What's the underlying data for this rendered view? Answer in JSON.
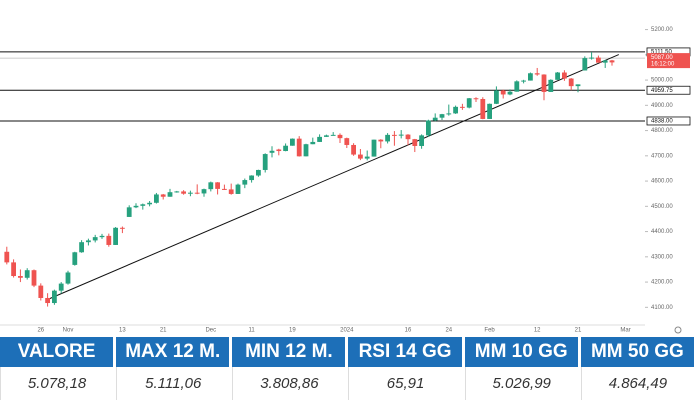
{
  "chart_data": {
    "type": "candlestick",
    "candles": [
      [
        4320,
        4340,
        4270,
        4278
      ],
      [
        4278,
        4290,
        4218,
        4224
      ],
      [
        4224,
        4250,
        4200,
        4217
      ],
      [
        4217,
        4255,
        4210,
        4247
      ],
      [
        4247,
        4250,
        4180,
        4186
      ],
      [
        4186,
        4195,
        4127,
        4137
      ],
      [
        4137,
        4156,
        4103,
        4117
      ],
      [
        4117,
        4170,
        4110,
        4166
      ],
      [
        4166,
        4200,
        4155,
        4194
      ],
      [
        4194,
        4245,
        4190,
        4238
      ],
      [
        4268,
        4320,
        4265,
        4318
      ],
      [
        4318,
        4366,
        4316,
        4358
      ],
      [
        4358,
        4372,
        4345,
        4365
      ],
      [
        4365,
        4387,
        4357,
        4378
      ],
      [
        4378,
        4391,
        4371,
        4383
      ],
      [
        4383,
        4392,
        4340,
        4347
      ],
      [
        4347,
        4418,
        4347,
        4415
      ],
      [
        4415,
        4420,
        4394,
        4411
      ],
      [
        4458,
        4504,
        4458,
        4496
      ],
      [
        4496,
        4512,
        4493,
        4502
      ],
      [
        4502,
        4511,
        4487,
        4508
      ],
      [
        4508,
        4521,
        4500,
        4514
      ],
      [
        4514,
        4553,
        4511,
        4547
      ],
      [
        4547,
        4549,
        4527,
        4538
      ],
      [
        4538,
        4569,
        4538,
        4556
      ],
      [
        4556,
        4561,
        4554,
        4559
      ],
      [
        4559,
        4564,
        4546,
        4550
      ],
      [
        4550,
        4562,
        4540,
        4554
      ],
      [
        4554,
        4587,
        4548,
        4551
      ],
      [
        4551,
        4570,
        4538,
        4568
      ],
      [
        4568,
        4598,
        4559,
        4595
      ],
      [
        4595,
        4596,
        4547,
        4569
      ],
      [
        4569,
        4586,
        4565,
        4567
      ],
      [
        4567,
        4590,
        4546,
        4549
      ],
      [
        4549,
        4590,
        4549,
        4586
      ],
      [
        4586,
        4610,
        4572,
        4604
      ],
      [
        4604,
        4623,
        4594,
        4622
      ],
      [
        4622,
        4645,
        4617,
        4644
      ],
      [
        4644,
        4710,
        4634,
        4707
      ],
      [
        4712,
        4738,
        4694,
        4720
      ],
      [
        4725,
        4728,
        4702,
        4719
      ],
      [
        4719,
        4749,
        4718,
        4740
      ],
      [
        4740,
        4769,
        4740,
        4768
      ],
      [
        4768,
        4778,
        4697,
        4698
      ],
      [
        4698,
        4748,
        4698,
        4746
      ],
      [
        4746,
        4772,
        4746,
        4755
      ],
      [
        4755,
        4785,
        4755,
        4775
      ],
      [
        4775,
        4784,
        4775,
        4781
      ],
      [
        4781,
        4794,
        4780,
        4783
      ],
      [
        4783,
        4789,
        4751,
        4770
      ],
      [
        4770,
        4772,
        4731,
        4743
      ],
      [
        4743,
        4750,
        4700,
        4705
      ],
      [
        4705,
        4727,
        4683,
        4689
      ],
      [
        4689,
        4721,
        4682,
        4697
      ],
      [
        4697,
        4764,
        4697,
        4764
      ],
      [
        4764,
        4766,
        4730,
        4757
      ],
      [
        4757,
        4790,
        4749,
        4783
      ],
      [
        4783,
        4798,
        4740,
        4780
      ],
      [
        4780,
        4802,
        4769,
        4784
      ],
      [
        4784,
        4786,
        4742,
        4766
      ],
      [
        4766,
        4767,
        4715,
        4739
      ],
      [
        4739,
        4785,
        4728,
        4781
      ],
      [
        4781,
        4843,
        4775,
        4840
      ],
      [
        4840,
        4868,
        4837,
        4851
      ],
      [
        4851,
        4866,
        4842,
        4865
      ],
      [
        4865,
        4903,
        4859,
        4868
      ],
      [
        4868,
        4899,
        4866,
        4894
      ],
      [
        4894,
        4906,
        4882,
        4891
      ],
      [
        4891,
        4929,
        4888,
        4928
      ],
      [
        4928,
        4932,
        4913,
        4925
      ],
      [
        4925,
        4932,
        4845,
        4846
      ],
      [
        4846,
        4907,
        4846,
        4906
      ],
      [
        4906,
        4975,
        4905,
        4959
      ],
      [
        4959,
        4962,
        4927,
        4943
      ],
      [
        4943,
        4963,
        4940,
        4954
      ],
      [
        4954,
        4999,
        4954,
        4995
      ],
      [
        4995,
        5001,
        4987,
        4998
      ],
      [
        4998,
        5030,
        4998,
        5027
      ],
      [
        5027,
        5048,
        5017,
        5022
      ],
      [
        5022,
        5023,
        4920,
        4953
      ],
      [
        4953,
        5003,
        4953,
        5001
      ],
      [
        5001,
        5032,
        5001,
        5030
      ],
      [
        5030,
        5039,
        4997,
        5006
      ],
      [
        5006,
        5008,
        4960,
        4976
      ],
      [
        4976,
        4983,
        4952,
        4983
      ],
      [
        5038,
        5094,
        5038,
        5087
      ],
      [
        5087,
        5111,
        5081,
        5089
      ],
      [
        5089,
        5097,
        5069,
        5069
      ],
      [
        5069,
        5080,
        5048,
        5078
      ],
      [
        5078,
        5080,
        5057,
        5070
      ]
    ],
    "up_color": "#26a17e",
    "down_color": "#ef5350",
    "xticks": [
      {
        "value": 5,
        "label": "26"
      },
      {
        "value": 9,
        "label": "Nov"
      },
      {
        "value": 17,
        "label": "13"
      },
      {
        "value": 23,
        "label": "21"
      },
      {
        "value": 30,
        "label": "Dec"
      },
      {
        "value": 36,
        "label": "11"
      },
      {
        "value": 42,
        "label": "19"
      },
      {
        "value": 50,
        "label": "2024"
      },
      {
        "value": 59,
        "label": "16"
      },
      {
        "value": 65,
        "label": "24"
      },
      {
        "value": 71,
        "label": "Feb"
      },
      {
        "value": 78,
        "label": "12"
      },
      {
        "value": 84,
        "label": "21"
      },
      {
        "value": 91,
        "label": "Mar"
      }
    ],
    "ylim": [
      4030,
      5230
    ],
    "yticks": [
      {
        "value": 4100,
        "label": "4100.00"
      },
      {
        "value": 4200,
        "label": "4200.00"
      },
      {
        "value": 4300,
        "label": "4300.00"
      },
      {
        "value": 4400,
        "label": "4400.00"
      },
      {
        "value": 4500,
        "label": "4500.00"
      },
      {
        "value": 4600,
        "label": "4600.00"
      },
      {
        "value": 4700,
        "label": "4700.00"
      },
      {
        "value": 4800,
        "label": "4800.00"
      },
      {
        "value": 4900,
        "label": "4900.00"
      },
      {
        "value": 5000,
        "label": "5000.00"
      },
      {
        "value": 5100,
        "label": "5100.00"
      },
      {
        "value": 5200,
        "label": "5200.00"
      }
    ],
    "levels": [
      {
        "value": 5111.5,
        "label": "5111.50"
      },
      {
        "value": 4959.75,
        "label": "4959.75"
      },
      {
        "value": 4838,
        "label": "4838.00"
      }
    ],
    "price_line": {
      "value": 5087,
      "label": "5087.00",
      "countdown": "16:12:00"
    },
    "trendline": {
      "from": [
        6,
        4131
      ],
      "to": [
        90,
        5101
      ]
    }
  },
  "table": {
    "headers": [
      "VALORE",
      "MAX 12 M.",
      "MIN 12 M.",
      "RSI 14 GG",
      "MM 10 GG",
      "MM 50 GG"
    ],
    "rows": [
      [
        "5.078,18",
        "5.111,06",
        "3.808,86",
        "65,91",
        "5.026,99",
        "4.864,49"
      ]
    ]
  }
}
